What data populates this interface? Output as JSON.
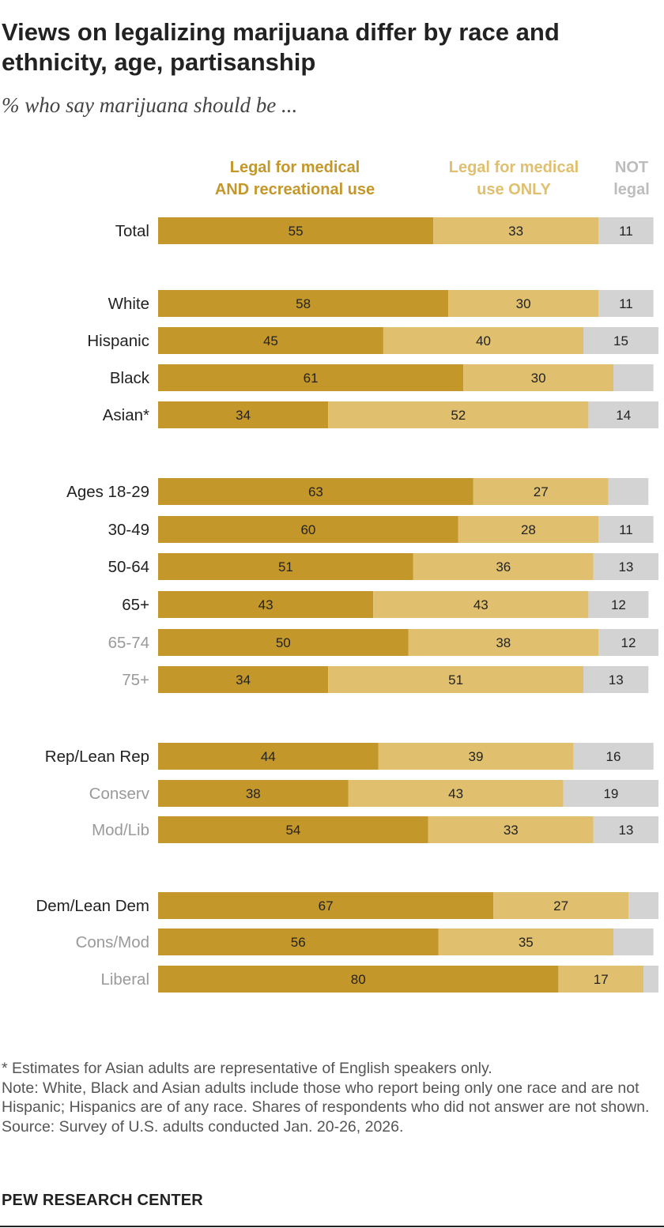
{
  "title": "Views on legalizing marijuana differ by race and ethnicity, age, partisanship",
  "subtitle": "% who say marijuana should be ...",
  "legend": {
    "s1_line1": "Legal for medical",
    "s1_line2": "AND recreational use",
    "s2_line1": "Legal for medical",
    "s2_line2": "use ONLY",
    "s3_line1": "NOT",
    "s3_line2": "legal"
  },
  "colors": {
    "s1": "#c4972a",
    "s2": "#e0c06e",
    "s3": "#d3d3d3"
  },
  "chart_data": {
    "type": "bar",
    "orientation": "horizontal",
    "stacked": true,
    "xlim": [
      0,
      100
    ],
    "series": [
      {
        "name": "Legal for medical AND recreational use"
      },
      {
        "name": "Legal for medical use ONLY"
      },
      {
        "name": "NOT legal"
      }
    ],
    "rows": [
      {
        "label": "Total",
        "values": [
          55,
          33,
          11
        ],
        "labels": [
          "55",
          "33",
          "11"
        ],
        "sub": false
      },
      {
        "label": "White",
        "values": [
          58,
          30,
          11
        ],
        "labels": [
          "58",
          "30",
          "11"
        ],
        "sub": false
      },
      {
        "label": "Hispanic",
        "values": [
          45,
          40,
          15
        ],
        "labels": [
          "45",
          "40",
          "15"
        ],
        "sub": false
      },
      {
        "label": "Black",
        "values": [
          61,
          30,
          8
        ],
        "labels": [
          "61",
          "30",
          ""
        ],
        "sub": false
      },
      {
        "label": "Asian*",
        "values": [
          34,
          52,
          14
        ],
        "labels": [
          "34",
          "52",
          "14"
        ],
        "sub": false
      },
      {
        "label": "Ages 18-29",
        "values": [
          63,
          27,
          8
        ],
        "labels": [
          "63",
          "27",
          ""
        ],
        "sub": false
      },
      {
        "label": "30-49",
        "values": [
          60,
          28,
          11
        ],
        "labels": [
          "60",
          "28",
          "11"
        ],
        "sub": false
      },
      {
        "label": "50-64",
        "values": [
          51,
          36,
          13
        ],
        "labels": [
          "51",
          "36",
          "13"
        ],
        "sub": false
      },
      {
        "label": "65+",
        "values": [
          43,
          43,
          12
        ],
        "labels": [
          "43",
          "43",
          "12"
        ],
        "sub": false
      },
      {
        "label": "65-74",
        "values": [
          50,
          38,
          12
        ],
        "labels": [
          "50",
          "38",
          "12"
        ],
        "sub": true
      },
      {
        "label": "75+",
        "values": [
          34,
          51,
          13
        ],
        "labels": [
          "34",
          "51",
          "13"
        ],
        "sub": true
      },
      {
        "label": "Rep/Lean Rep",
        "values": [
          44,
          39,
          16
        ],
        "labels": [
          "44",
          "39",
          "16"
        ],
        "sub": false
      },
      {
        "label": "Conserv",
        "values": [
          38,
          43,
          19
        ],
        "labels": [
          "38",
          "43",
          "19"
        ],
        "sub": true
      },
      {
        "label": "Mod/Lib",
        "values": [
          54,
          33,
          13
        ],
        "labels": [
          "54",
          "33",
          "13"
        ],
        "sub": true
      },
      {
        "label": "Dem/Lean Dem",
        "values": [
          67,
          27,
          6
        ],
        "labels": [
          "67",
          "27",
          ""
        ],
        "sub": false
      },
      {
        "label": "Cons/Mod",
        "values": [
          56,
          35,
          8
        ],
        "labels": [
          "56",
          "35",
          ""
        ],
        "sub": true
      },
      {
        "label": "Liberal",
        "values": [
          80,
          17,
          3
        ],
        "labels": [
          "80",
          "17",
          ""
        ],
        "sub": true
      }
    ]
  },
  "notes": {
    "asterisk": "* Estimates for Asian adults are representative of English speakers only.",
    "note": "Note: White, Black and Asian adults include those who report being only one race and are not Hispanic; Hispanics are of any race. Shares of respondents who did not answer are not shown.",
    "source": "Source: Survey of U.S. adults conducted Jan. 20-26, 2026."
  },
  "brand": "PEW RESEARCH CENTER"
}
